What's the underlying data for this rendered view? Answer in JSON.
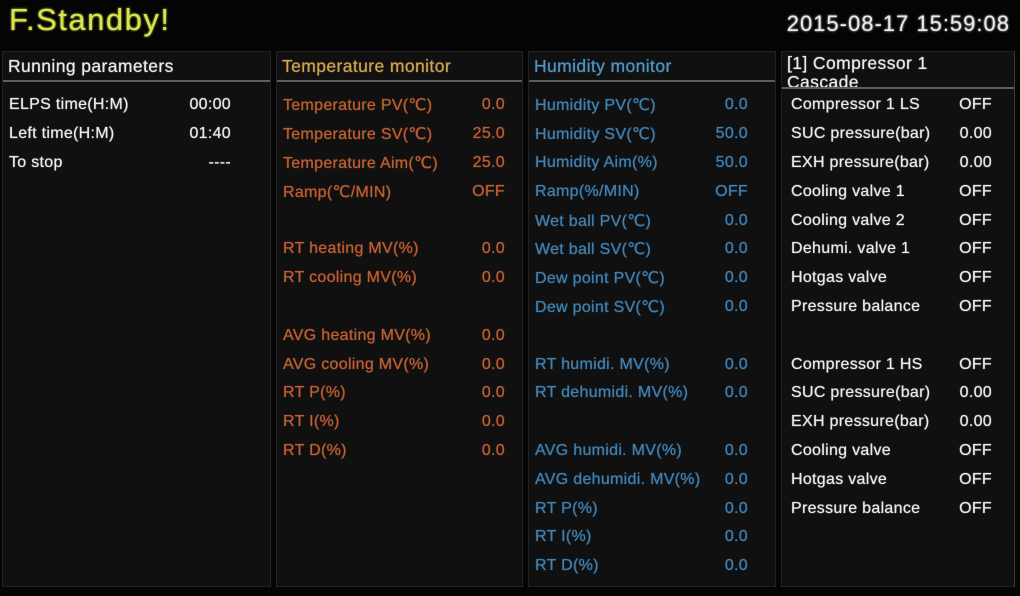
{
  "topbar": {
    "status_title": "F.Standby!",
    "datetime": "2015-08-17 15:59:08"
  },
  "colors": {
    "status_green": "#d9e44c",
    "text_white": "#eaeaea",
    "temperature_header": "#d0a24b",
    "temperature_accent": "#bf5e31",
    "humidity_header": "#4e95c5",
    "humidity_accent": "#4081b2",
    "header_divider": "#5e5e5e",
    "panel_bg": "#101010",
    "page_bg": "#050505"
  },
  "panels": [
    {
      "id": "running-parameters",
      "title": "Running parameters",
      "rows": [
        {
          "label": "ELPS time(H:M)",
          "value": "00:00"
        },
        {
          "label": "Left time(H:M)",
          "value": "01:40"
        },
        {
          "label": "To stop",
          "value": "----"
        }
      ]
    },
    {
      "id": "temperature-monitor",
      "title": "Temperature monitor",
      "rows": [
        {
          "label": "Temperature PV(℃)",
          "value": "0.0"
        },
        {
          "label": "Temperature SV(℃)",
          "value": "25.0"
        },
        {
          "label": "Temperature Aim(℃)",
          "value": "25.0"
        },
        {
          "label": "Ramp(℃/MIN)",
          "value": "OFF"
        },
        {
          "spacer": true
        },
        {
          "label": "RT heating MV(%)",
          "value": "0.0"
        },
        {
          "label": "RT cooling MV(%)",
          "value": "0.0"
        },
        {
          "spacer": true
        },
        {
          "label": "AVG heating MV(%)",
          "value": "0.0"
        },
        {
          "label": "AVG cooling MV(%)",
          "value": "0.0"
        },
        {
          "label": "RT P(%)",
          "value": "0.0"
        },
        {
          "label": "RT I(%)",
          "value": "0.0"
        },
        {
          "label": "RT D(%)",
          "value": "0.0"
        }
      ]
    },
    {
      "id": "humidity-monitor",
      "title": "Humidity monitor",
      "rows": [
        {
          "label": "Humidity PV(℃)",
          "value": "0.0"
        },
        {
          "label": "Humidity SV(℃)",
          "value": "50.0"
        },
        {
          "label": "Humidity Aim(%)",
          "value": "50.0"
        },
        {
          "label": "Ramp(%/MIN)",
          "value": "OFF"
        },
        {
          "label": "Wet ball PV(℃)",
          "value": "0.0"
        },
        {
          "label": "Wet ball SV(℃)",
          "value": "0.0"
        },
        {
          "label": "Dew point PV(℃)",
          "value": "0.0"
        },
        {
          "label": "Dew point SV(℃)",
          "value": "0.0"
        },
        {
          "spacer": true
        },
        {
          "label": "RT humidi. MV(%)",
          "value": "0.0"
        },
        {
          "label": "RT dehumidi. MV(%)",
          "value": "0.0"
        },
        {
          "spacer": true
        },
        {
          "label": "AVG humidi. MV(%)",
          "value": "0.0"
        },
        {
          "label": "AVG dehumidi. MV(%)",
          "value": "0.0"
        },
        {
          "label": "RT P(%)",
          "value": "0.0"
        },
        {
          "label": "RT I(%)",
          "value": "0.0"
        },
        {
          "label": "RT D(%)",
          "value": "0.0"
        }
      ]
    },
    {
      "id": "compressor-1",
      "title": "[1] Compressor 1",
      "subtitle": "Cascade",
      "rows": [
        {
          "label": "Compressor 1 LS",
          "value": "OFF"
        },
        {
          "label": "SUC pressure(bar)",
          "value": "0.00"
        },
        {
          "label": "EXH pressure(bar)",
          "value": "0.00"
        },
        {
          "label": "Cooling valve 1",
          "value": "OFF"
        },
        {
          "label": "Cooling valve 2",
          "value": "OFF"
        },
        {
          "label": "Dehumi. valve 1",
          "value": "OFF"
        },
        {
          "label": "Hotgas valve",
          "value": "OFF"
        },
        {
          "label": "Pressure balance",
          "value": "OFF"
        },
        {
          "spacer": true
        },
        {
          "label": "Compressor 1 HS",
          "value": "OFF"
        },
        {
          "label": "SUC pressure(bar)",
          "value": "0.00"
        },
        {
          "label": "EXH pressure(bar)",
          "value": "0.00"
        },
        {
          "label": "Cooling valve",
          "value": "OFF"
        },
        {
          "label": "Hotgas valve",
          "value": "OFF"
        },
        {
          "label": "Pressure balance",
          "value": "OFF"
        }
      ]
    }
  ]
}
